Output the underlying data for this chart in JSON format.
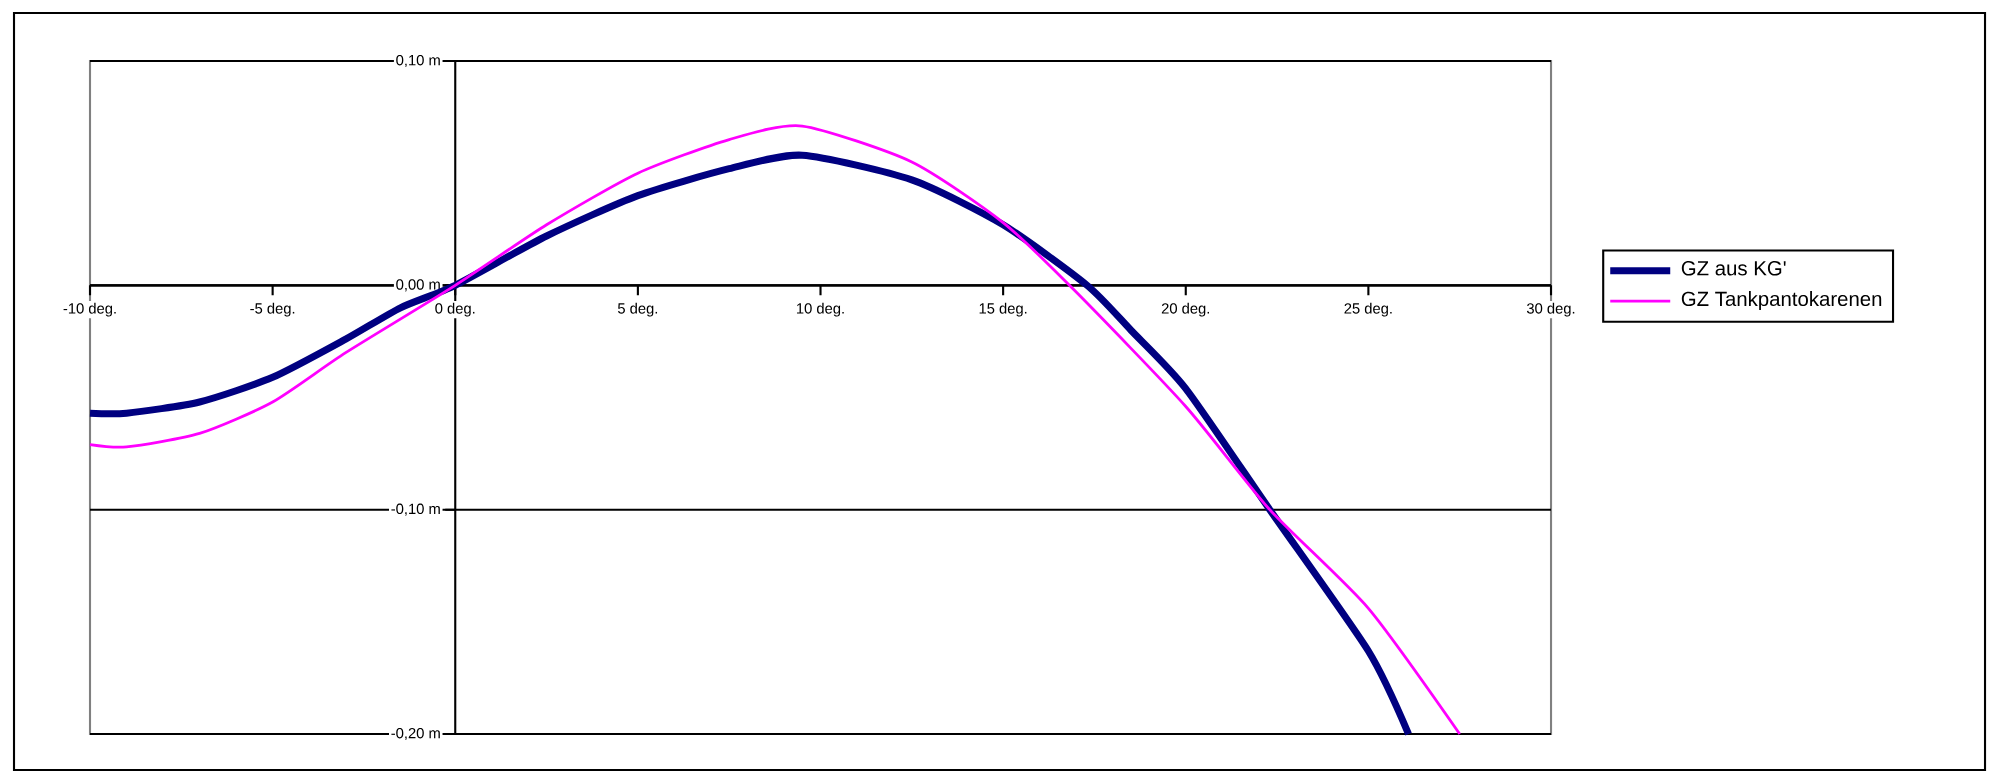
{
  "chart_data": {
    "type": "line",
    "xlim": [
      -10,
      30
    ],
    "ylim": [
      -0.2,
      0.1
    ],
    "xticks": [
      {
        "value": -10,
        "label": "-10 deg."
      },
      {
        "value": -5,
        "label": "-5 deg."
      },
      {
        "value": 0,
        "label": "0 deg."
      },
      {
        "value": 5,
        "label": "5 deg."
      },
      {
        "value": 10,
        "label": "10 deg."
      },
      {
        "value": 15,
        "label": "15 deg."
      },
      {
        "value": 20,
        "label": "20 deg."
      },
      {
        "value": 25,
        "label": "25 deg."
      },
      {
        "value": 30,
        "label": "30 deg."
      }
    ],
    "yticks": [
      {
        "value": -0.2,
        "label": "-0,20 m"
      },
      {
        "value": -0.1,
        "label": "-0,10 m"
      },
      {
        "value": 0,
        "label": "0,00 m"
      },
      {
        "value": 0.1,
        "label": "0,10 m"
      }
    ],
    "grid": "y",
    "legend": "right",
    "marker": "none",
    "line_style": "solid",
    "series": [
      {
        "name": "GZ  aus KG'",
        "color": "#000080",
        "x": [
          -10,
          -9,
          -7,
          -5,
          -3,
          -1.5,
          0,
          2.5,
          5,
          7.5,
          9.5,
          12.5,
          15,
          17.3,
          18.5,
          20,
          22.3,
          25,
          26.1
        ],
        "values": [
          -0.057,
          -0.057,
          -0.052,
          -0.041,
          -0.024,
          -0.01,
          0,
          0.022,
          0.04,
          0.052,
          0.058,
          0.047,
          0.027,
          0,
          -0.02,
          -0.046,
          -0.1,
          -0.163,
          -0.2
        ]
      },
      {
        "name": "GZ Tankpantokarenen",
        "color": "#ff00ff",
        "x": [
          -10,
          -9,
          -7,
          -5,
          -3,
          0,
          2.5,
          5,
          7.5,
          9.5,
          12.5,
          15,
          17,
          20,
          22.3,
          25,
          27.5
        ],
        "values": [
          -0.071,
          -0.072,
          -0.066,
          -0.052,
          -0.03,
          0,
          0.027,
          0.05,
          0.065,
          0.071,
          0.055,
          0.028,
          -0.003,
          -0.054,
          -0.1,
          -0.144,
          -0.2
        ]
      }
    ]
  }
}
